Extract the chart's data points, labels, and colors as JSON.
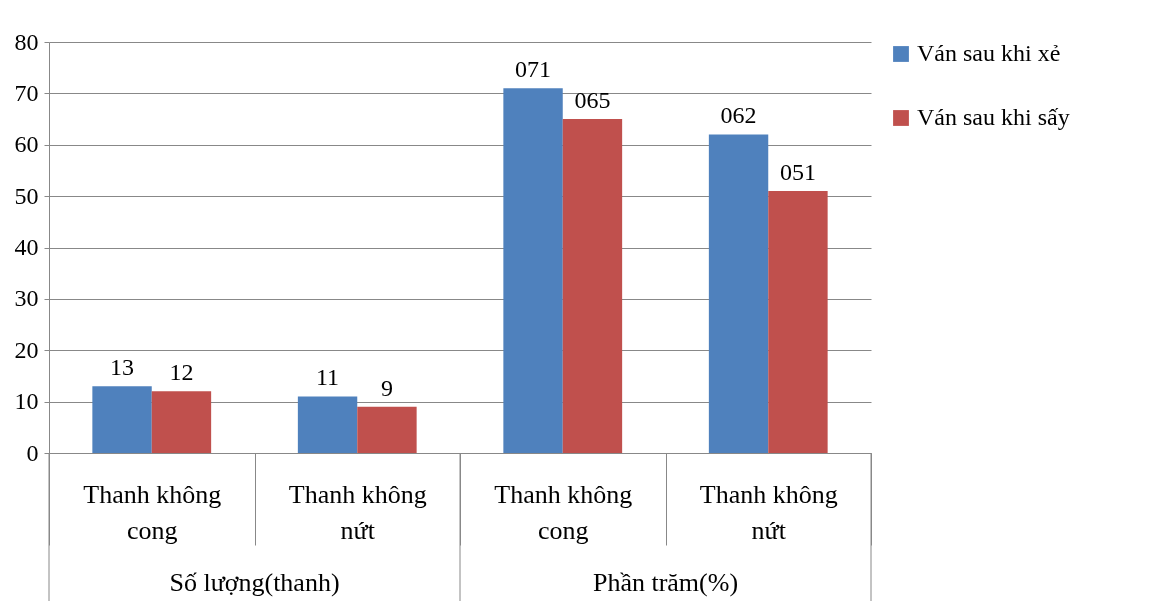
{
  "chart_data": {
    "type": "bar",
    "categories": [
      "Thanh không cong",
      "Thanh không nứt",
      "Thanh không cong",
      "Thanh không nứt"
    ],
    "series": [
      {
        "name": "Ván sau khi xẻ",
        "color": "#4f81bd",
        "values": [
          13,
          11,
          71,
          62
        ],
        "value_labels": [
          "13",
          "11",
          "071",
          "062"
        ]
      },
      {
        "name": "Ván sau khi sấy",
        "color": "#c0504d",
        "values": [
          12,
          9,
          65,
          51
        ],
        "value_labels": [
          "12",
          "9",
          "065",
          "051"
        ]
      }
    ],
    "annotations": [
      "Số lượng(thanh)",
      "Phần trăm(%)"
    ],
    "ylim": [
      0,
      80
    ],
    "yticks": [
      0,
      10,
      20,
      30,
      40,
      50,
      60,
      70,
      80
    ],
    "grid": "y",
    "legend": "right"
  }
}
